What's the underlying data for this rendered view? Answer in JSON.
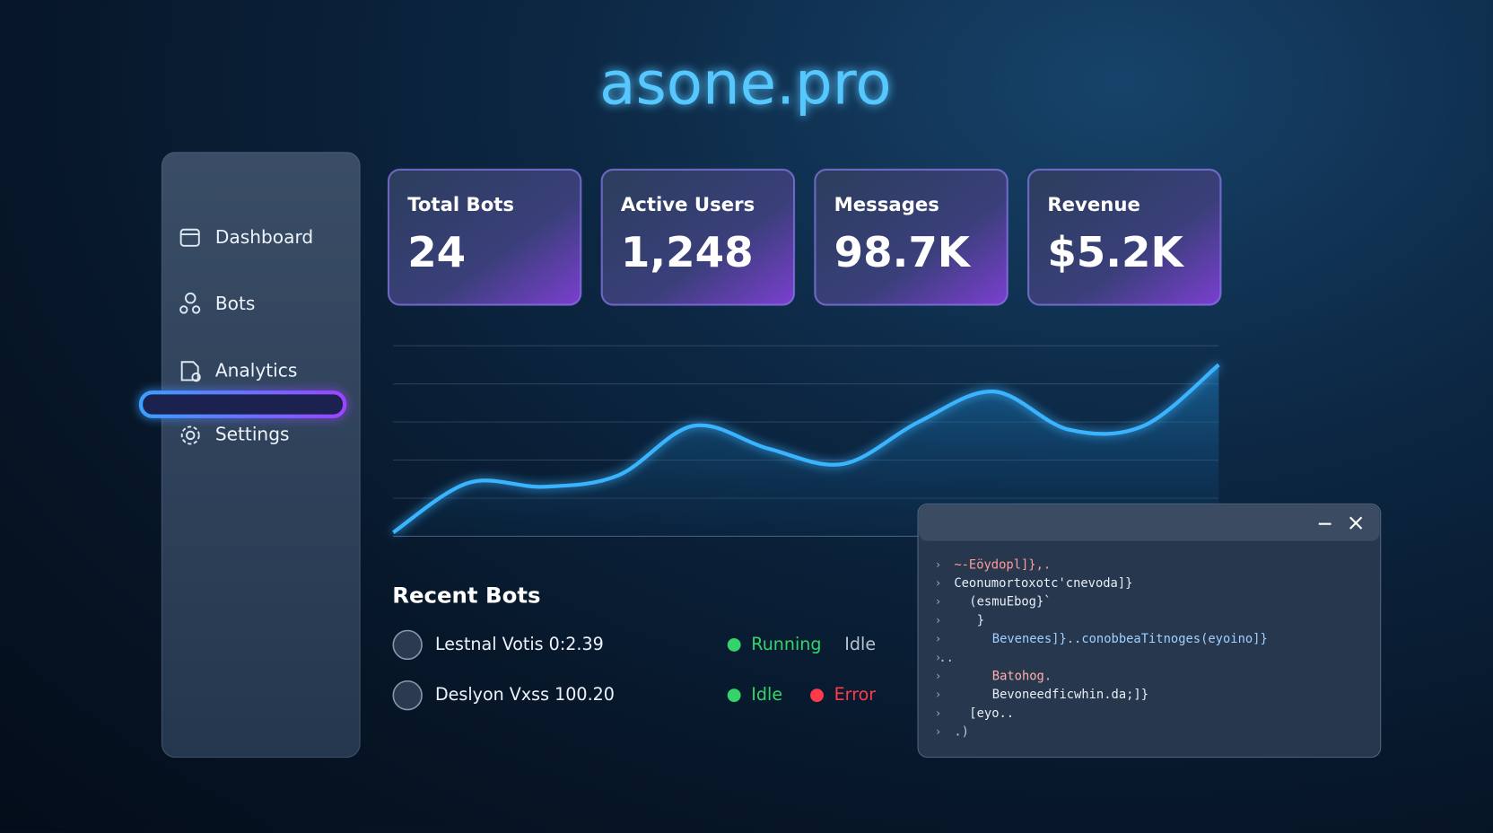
{
  "brand": "asone.pro",
  "sidebar": {
    "items": [
      "Dashboard",
      "Bots",
      "Analytics",
      "Settings"
    ]
  },
  "stats": [
    {
      "label": "Total Bots",
      "value": "24"
    },
    {
      "label": "Active Users",
      "value": "1,248"
    },
    {
      "label": "Messages",
      "value": "98.7K"
    },
    {
      "label": "Revenue",
      "value": "$5.2K"
    }
  ],
  "chart_data": {
    "type": "line",
    "values": [
      0.1,
      1.4,
      1.3,
      1.6,
      2.9,
      2.3,
      1.9,
      3.0,
      3.8,
      2.8,
      2.9,
      4.5
    ],
    "ylim": [
      0,
      5
    ],
    "color": "#3ab4ff"
  },
  "recent": {
    "title": "Recent Bots",
    "rows": [
      {
        "name": "Lestnal Votis 0:2.39",
        "statuses": [
          "Running",
          "Idle"
        ]
      },
      {
        "name": "Deslyon Vxss 100.20",
        "statuses": [
          "Idle",
          "Error"
        ]
      }
    ]
  },
  "terminal": {
    "lines": [
      "~-Eöydopl]},.",
      "Ceonumortoxotc'cnevoda]}",
      "(esmuEbog}`",
      "}",
      "Bevenees]}..conobbeaTitnoges(eyoino]}",
      "..",
      "Batohog.",
      "Bevoneedficwhin.da;]}",
      "[eyo..",
      ".)"
    ]
  }
}
